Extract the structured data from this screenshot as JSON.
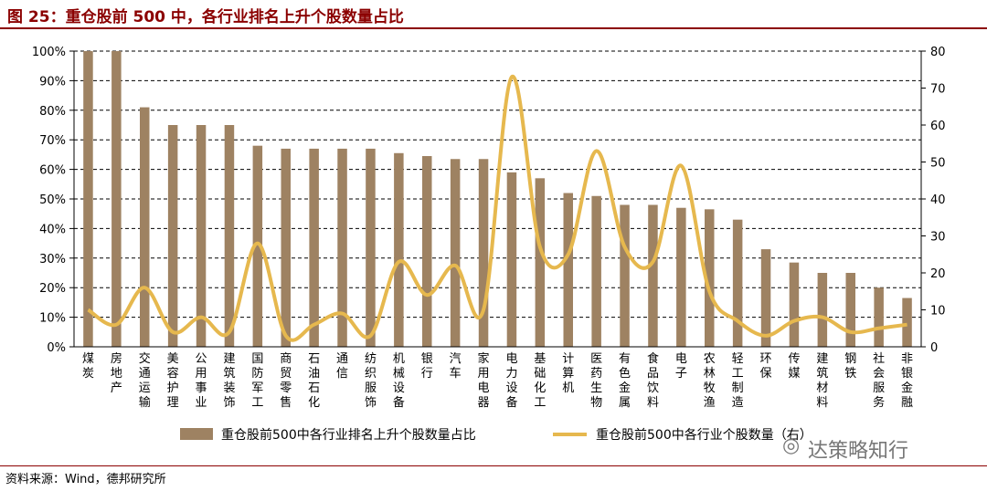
{
  "figure": {
    "title": "图 25：重仓股前 500 中，各行业排名上升个股数量占比",
    "source": "资料来源：Wind，德邦研究所",
    "watermark": "达策略知行",
    "watermark_icon": "wechat-icon"
  },
  "chart_data": {
    "type": "bar",
    "title": "图 25：重仓股前 500 中，各行业排名上升个股数量占比",
    "categories": [
      "煤炭",
      "房地产",
      "交通运输",
      "美容护理",
      "公用事业",
      "建筑装饰",
      "国防军工",
      "商贸零售",
      "石油石化",
      "通信",
      "纺织服饰",
      "机械设备",
      "银行",
      "汽车",
      "家用电器",
      "电力设备",
      "基础化工",
      "计算机",
      "医药生物",
      "有色金属",
      "食品饮料",
      "电子",
      "农林牧渔",
      "轻工制造",
      "环保",
      "传媒",
      "建筑材料",
      "钢铁",
      "社会服务",
      "非银金融"
    ],
    "series": [
      {
        "name": "重仓股前500中各行业排名上升个股数量占比",
        "type": "bar",
        "axis": "left",
        "color": "#9E8262",
        "values": [
          1.0,
          1.0,
          0.81,
          0.75,
          0.75,
          0.75,
          0.68,
          0.67,
          0.67,
          0.67,
          0.67,
          0.655,
          0.645,
          0.635,
          0.635,
          0.59,
          0.57,
          0.52,
          0.51,
          0.48,
          0.48,
          0.47,
          0.465,
          0.43,
          0.33,
          0.285,
          0.25,
          0.25,
          0.2,
          0.165
        ]
      },
      {
        "name": "重仓股前500中各行业个股数量（右）",
        "type": "line",
        "axis": "right",
        "color": "#E6B84E",
        "values": [
          10,
          6,
          16,
          4,
          8,
          4,
          28,
          3,
          6,
          9,
          3,
          23,
          14,
          22,
          10,
          73,
          27,
          25,
          53,
          27,
          23,
          49,
          15,
          7,
          3,
          7,
          8,
          4,
          5,
          6
        ]
      }
    ],
    "y_left": {
      "ticks": [
        "0%",
        "10%",
        "20%",
        "30%",
        "40%",
        "50%",
        "60%",
        "70%",
        "80%",
        "90%",
        "100%"
      ],
      "range": [
        0,
        1
      ]
    },
    "y_right": {
      "ticks": [
        "0",
        "10",
        "20",
        "30",
        "40",
        "50",
        "60",
        "70",
        "80"
      ],
      "range": [
        0,
        80
      ]
    },
    "grid": "dashed-horizontal",
    "legend_position": "bottom"
  }
}
